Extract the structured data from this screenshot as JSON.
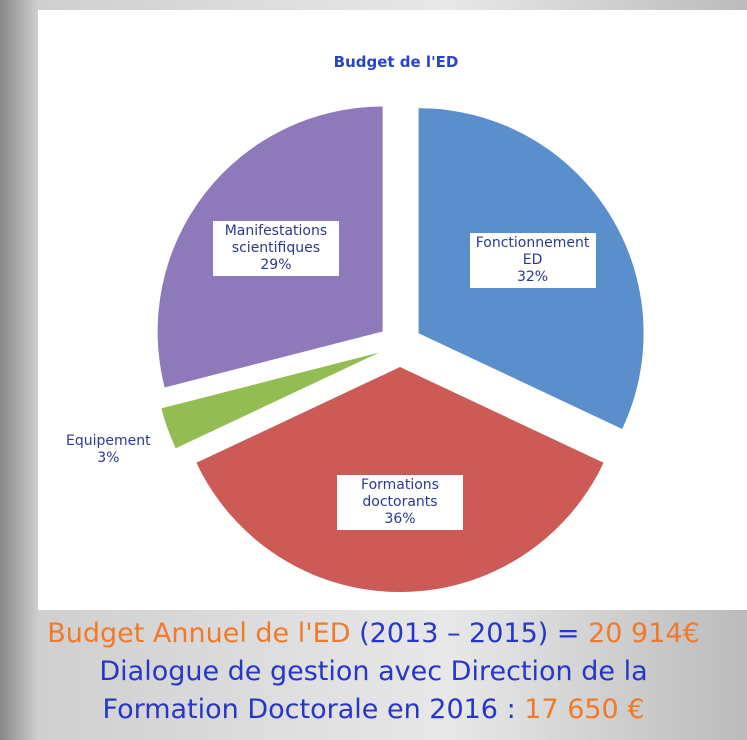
{
  "chart_data": {
    "type": "pie",
    "title": "Budget de l'ED",
    "categories": [
      "Fonctionnement ED",
      "Formations doctorants",
      "Equipement",
      "Manifestations scientifiques"
    ],
    "values": [
      32,
      36,
      3,
      29
    ],
    "value_labels": [
      "32%",
      "36%",
      "3%",
      "29%"
    ],
    "colors": [
      "#5b8fcb",
      "#cc5b57",
      "#93bd52",
      "#8e7aba"
    ]
  },
  "footer": {
    "budget_label": "Budget Annuel de l'ED",
    "budget_period": "(2013 – 2015)",
    "equals": "=",
    "budget_amount": "20 914€",
    "line2": "Dialogue de gestion avec Direction de la",
    "line3": "Formation Doctorale en 2016 :",
    "dialogue_amount": "17 650 €"
  }
}
